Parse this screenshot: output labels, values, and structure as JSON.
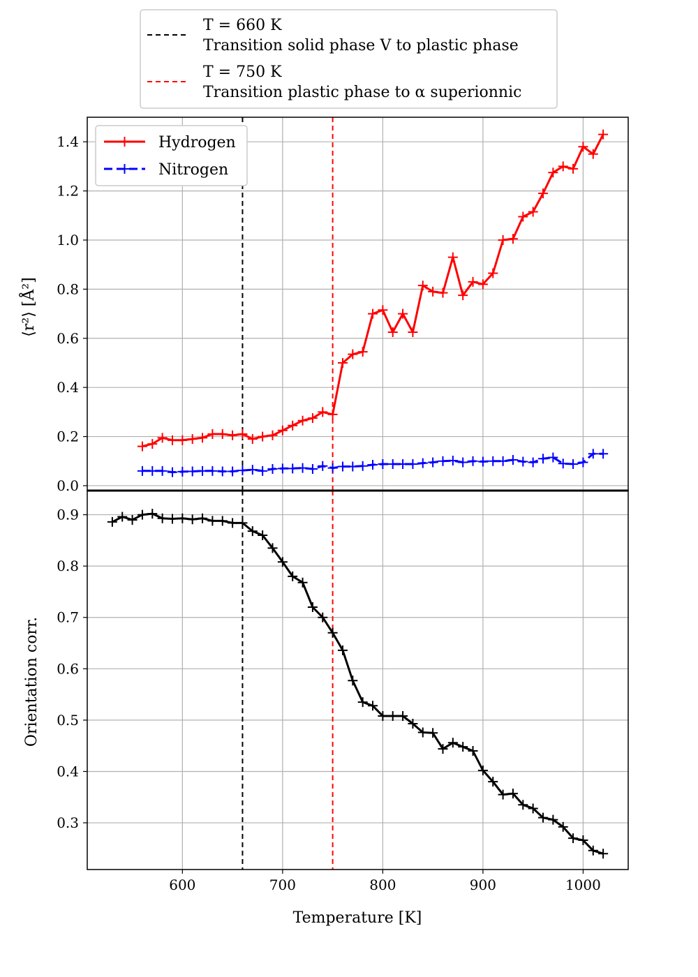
{
  "chart_data": [
    {
      "type": "line",
      "ylabel": "⟨r²⟩ [Å²]",
      "ylim": [
        -0.02,
        1.5
      ],
      "yticks": [
        0.0,
        0.2,
        0.4,
        0.6,
        0.8,
        1.0,
        1.2,
        1.4
      ],
      "xlim": [
        505,
        1045
      ],
      "grid": true,
      "legend": {
        "placement": "top-left",
        "entries": [
          "Hydrogen",
          "Nitrogen"
        ]
      },
      "series": [
        {
          "name": "Hydrogen",
          "color": "#ff0000",
          "line_style": "solid",
          "marker": "+",
          "x": [
            560,
            570,
            580,
            590,
            600,
            610,
            620,
            630,
            640,
            650,
            660,
            670,
            680,
            690,
            700,
            710,
            720,
            730,
            740,
            750,
            760,
            770,
            780,
            790,
            800,
            810,
            820,
            830,
            840,
            850,
            860,
            870,
            880,
            890,
            900,
            910,
            920,
            930,
            940,
            950,
            960,
            970,
            980,
            990,
            1000,
            1010,
            1020
          ],
          "y": [
            0.16,
            0.17,
            0.195,
            0.185,
            0.185,
            0.19,
            0.195,
            0.21,
            0.21,
            0.205,
            0.21,
            0.19,
            0.2,
            0.205,
            0.225,
            0.245,
            0.265,
            0.275,
            0.3,
            0.29,
            0.5,
            0.535,
            0.545,
            0.7,
            0.715,
            0.625,
            0.7,
            0.625,
            0.815,
            0.79,
            0.785,
            0.93,
            0.775,
            0.83,
            0.82,
            0.865,
            1.0,
            1.005,
            1.095,
            1.115,
            1.19,
            1.275,
            1.3,
            1.29,
            1.38,
            1.35,
            1.43
          ]
        },
        {
          "name": "Nitrogen",
          "color": "#0000ff",
          "line_style": "dashed",
          "marker": "+",
          "x": [
            560,
            570,
            580,
            590,
            600,
            610,
            620,
            630,
            640,
            650,
            660,
            670,
            680,
            690,
            700,
            710,
            720,
            730,
            740,
            750,
            760,
            770,
            780,
            790,
            800,
            810,
            820,
            830,
            840,
            850,
            860,
            870,
            880,
            890,
            900,
            910,
            920,
            930,
            940,
            950,
            960,
            970,
            980,
            990,
            1000,
            1010,
            1020
          ],
          "y": [
            0.06,
            0.06,
            0.06,
            0.055,
            0.057,
            0.058,
            0.06,
            0.06,
            0.058,
            0.058,
            0.062,
            0.065,
            0.06,
            0.068,
            0.07,
            0.07,
            0.072,
            0.068,
            0.08,
            0.072,
            0.078,
            0.078,
            0.08,
            0.085,
            0.088,
            0.088,
            0.088,
            0.088,
            0.092,
            0.095,
            0.1,
            0.102,
            0.095,
            0.1,
            0.098,
            0.1,
            0.1,
            0.105,
            0.098,
            0.095,
            0.11,
            0.115,
            0.09,
            0.088,
            0.095,
            0.13,
            0.13
          ]
        }
      ]
    },
    {
      "type": "line",
      "xlabel": "Temperature [K]",
      "ylabel": "Orientation corr.",
      "xlim": [
        505,
        1045
      ],
      "ylim": [
        0.209,
        0.947
      ],
      "xticks": [
        600,
        700,
        800,
        900,
        1000
      ],
      "yticks": [
        0.3,
        0.4,
        0.5,
        0.6,
        0.7,
        0.8,
        0.9
      ],
      "grid": true,
      "series": [
        {
          "color": "#000000",
          "line_style": "solid",
          "marker": "+",
          "x": [
            530,
            540,
            550,
            560,
            570,
            580,
            590,
            600,
            610,
            620,
            630,
            640,
            650,
            660,
            670,
            680,
            690,
            700,
            710,
            720,
            730,
            740,
            750,
            760,
            770,
            780,
            790,
            800,
            810,
            820,
            830,
            840,
            850,
            860,
            870,
            880,
            890,
            900,
            910,
            920,
            930,
            940,
            950,
            960,
            970,
            980,
            990,
            1000,
            1010,
            1020
          ],
          "y": [
            0.886,
            0.896,
            0.89,
            0.9,
            0.902,
            0.893,
            0.892,
            0.893,
            0.891,
            0.893,
            0.888,
            0.888,
            0.884,
            0.884,
            0.868,
            0.86,
            0.835,
            0.808,
            0.78,
            0.768,
            0.72,
            0.7,
            0.67,
            0.636,
            0.577,
            0.535,
            0.528,
            0.508,
            0.508,
            0.508,
            0.493,
            0.476,
            0.475,
            0.444,
            0.456,
            0.448,
            0.44,
            0.402,
            0.38,
            0.355,
            0.357,
            0.335,
            0.328,
            0.31,
            0.306,
            0.292,
            0.27,
            0.266,
            0.246,
            0.24
          ]
        }
      ]
    }
  ],
  "figure_legend": {
    "placement": "top-center",
    "entries": [
      {
        "color": "#000000",
        "line_style": "dashed",
        "line1": "T = 660 K",
        "line2": "Transition solid phase V to plastic phase"
      },
      {
        "color": "#ff0000",
        "line_style": "dashed",
        "line1": "T = 750 K",
        "line2": "Transition plastic phase to α superionnic"
      }
    ]
  },
  "vlines": [
    {
      "x": 660,
      "color": "#000000"
    },
    {
      "x": 750,
      "color": "#ff0000"
    }
  ]
}
